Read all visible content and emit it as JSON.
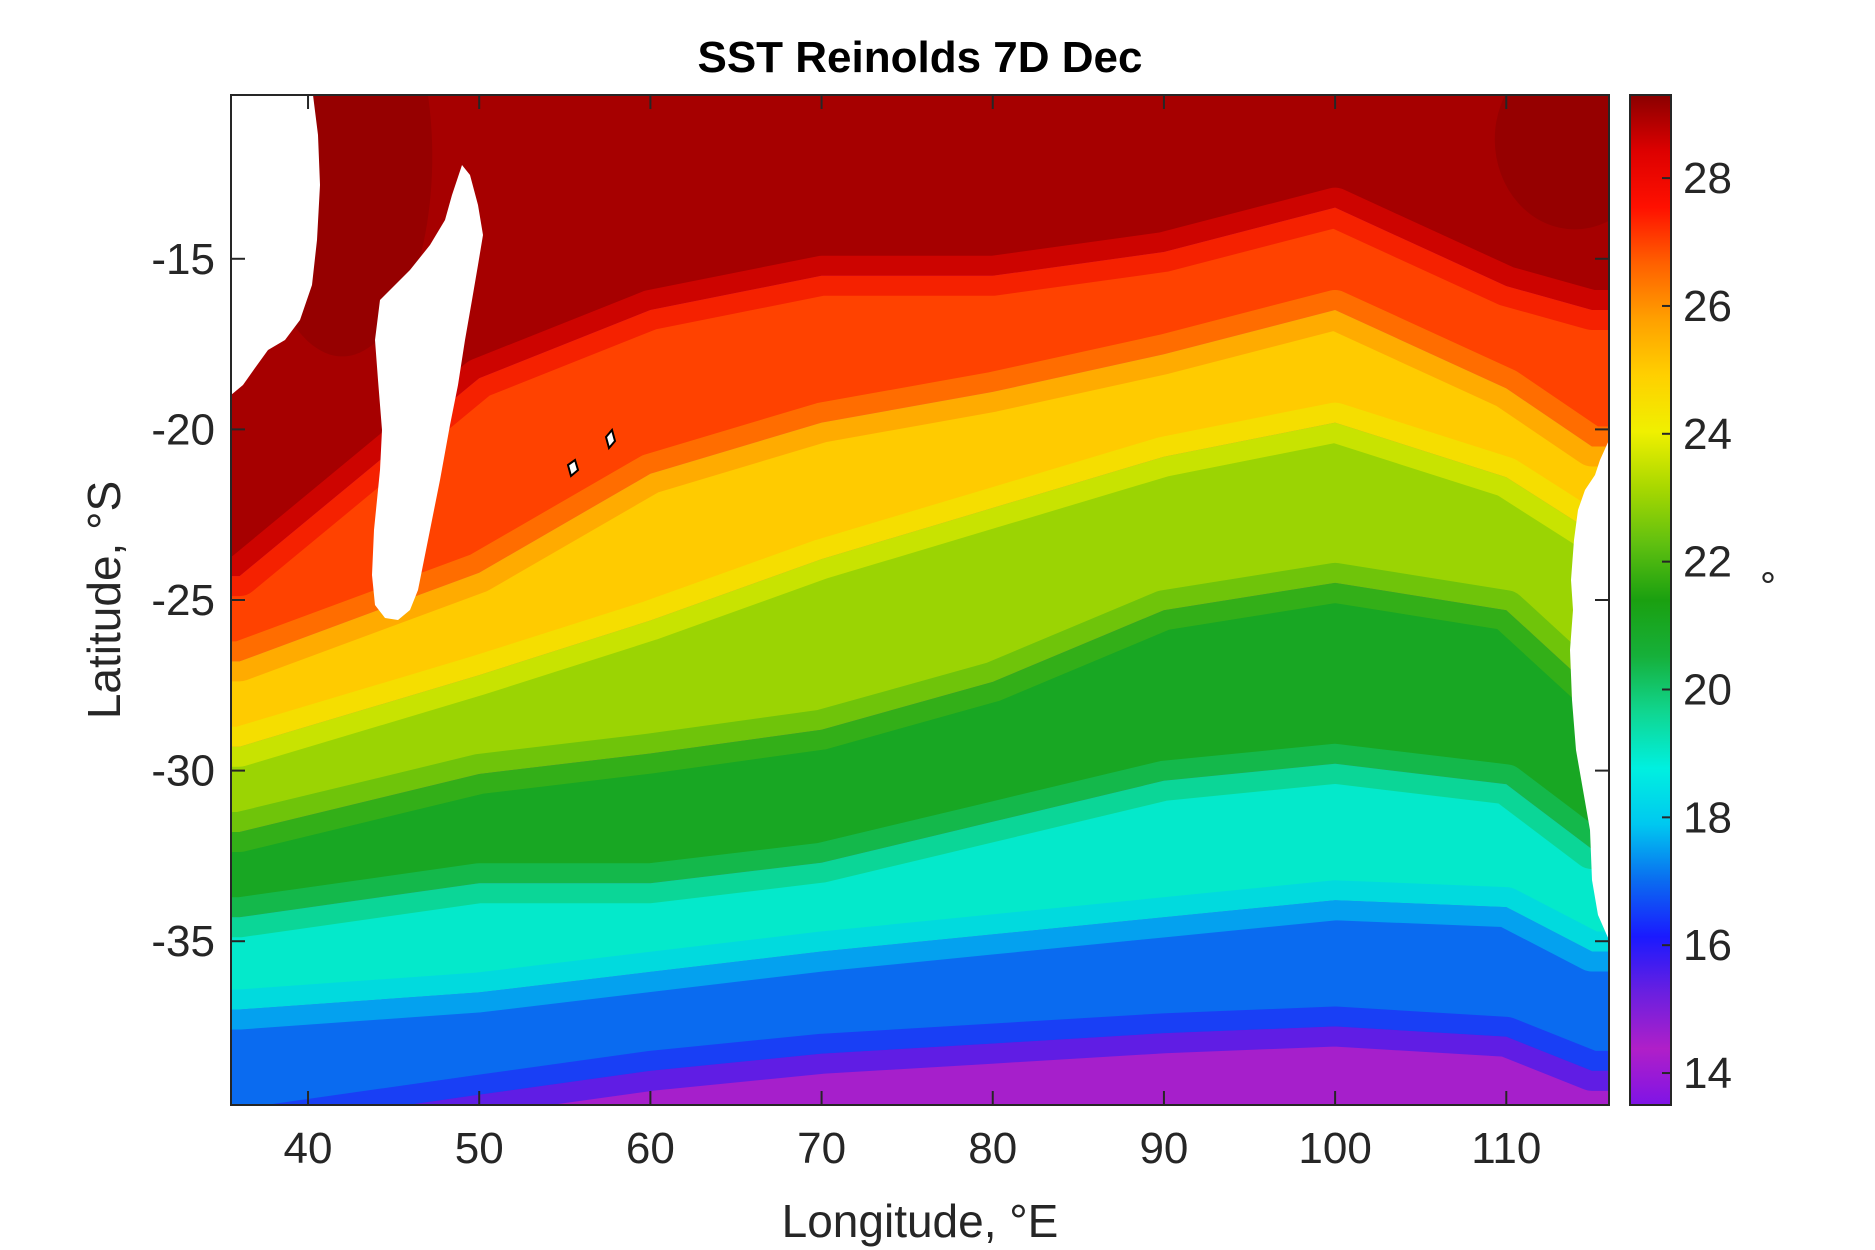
{
  "title": "SST Reinolds 7D Dec",
  "xlabel": "Longitude, °E",
  "ylabel": "Latitude, °S",
  "colorbar": {
    "label": "°",
    "range": [
      13.5,
      29.3
    ],
    "ticks": [
      "14",
      "16",
      "18",
      "20",
      "22",
      "24",
      "26",
      "28"
    ],
    "colormap": [
      "#7f14e6",
      "#b01fc8",
      "#6a1fe0",
      "#1a1aff",
      "#0a6cf0",
      "#00c8f0",
      "#00f0e0",
      "#10d690",
      "#16b03a",
      "#1aa010",
      "#60c010",
      "#a8d800",
      "#f0f000",
      "#ffd000",
      "#ffa000",
      "#ff6000",
      "#ff1000",
      "#dd0000",
      "#8a0000"
    ]
  },
  "chart_data": {
    "type": "heatmap",
    "title": "SST Reinolds 7D Dec",
    "xlabel": "Longitude, °E",
    "ylabel": "Latitude, °S",
    "xlim": [
      35.5,
      116
    ],
    "ylim": [
      -39.8,
      -10.2
    ],
    "xticks": [
      "40",
      "50",
      "60",
      "70",
      "80",
      "90",
      "100",
      "110"
    ],
    "yticks": [
      "-15",
      "-20",
      "-25",
      "-30",
      "-35"
    ],
    "isotherms": [
      {
        "value": 28,
        "x": [
          36,
          50,
          60,
          70,
          80,
          90,
          100,
          110,
          115
        ],
        "y": [
          -24.3,
          -18.5,
          -16.5,
          -15.5,
          -15.5,
          -14.8,
          -13.5,
          -15.8,
          -16.5
        ]
      },
      {
        "value": 26,
        "x": [
          36,
          50,
          60,
          70,
          80,
          90,
          100,
          110,
          115
        ],
        "y": [
          -26.8,
          -24.2,
          -21.3,
          -19.8,
          -18.9,
          -17.8,
          -16.5,
          -18.8,
          -20.5
        ]
      },
      {
        "value": 24,
        "x": [
          36,
          50,
          60,
          70,
          80,
          90,
          100,
          110,
          115
        ],
        "y": [
          -29.3,
          -27.2,
          -25.6,
          -23.8,
          -22.3,
          -20.8,
          -19.8,
          -21.4,
          -23.0
        ]
      },
      {
        "value": 22,
        "x": [
          36,
          50,
          60,
          70,
          80,
          90,
          100,
          110,
          115
        ],
        "y": [
          -31.8,
          -30.1,
          -29.5,
          -28.8,
          -27.4,
          -25.3,
          -24.5,
          -25.3,
          -27.6
        ]
      },
      {
        "value": 20,
        "x": [
          36,
          50,
          60,
          70,
          80,
          90,
          100,
          110,
          115
        ],
        "y": [
          -34.3,
          -33.3,
          -33.3,
          -32.7,
          -31.5,
          -30.3,
          -29.8,
          -30.4,
          -32.3
        ]
      },
      {
        "value": 18,
        "x": [
          36,
          50,
          60,
          70,
          80,
          90,
          100,
          110,
          115
        ],
        "y": [
          -37.0,
          -36.5,
          -35.9,
          -35.3,
          -34.8,
          -34.3,
          -33.8,
          -34.0,
          -35.3
        ]
      },
      {
        "value": 16,
        "x": [
          36,
          50,
          60,
          70,
          80,
          90,
          100,
          110,
          115
        ],
        "y": [
          -40.5,
          -39.5,
          -38.8,
          -38.3,
          -38.0,
          -37.7,
          -37.5,
          -37.8,
          -38.8
        ]
      }
    ],
    "land": [
      "Africa",
      "Madagascar",
      "Australia",
      "Mauritius",
      "Réunion"
    ]
  }
}
